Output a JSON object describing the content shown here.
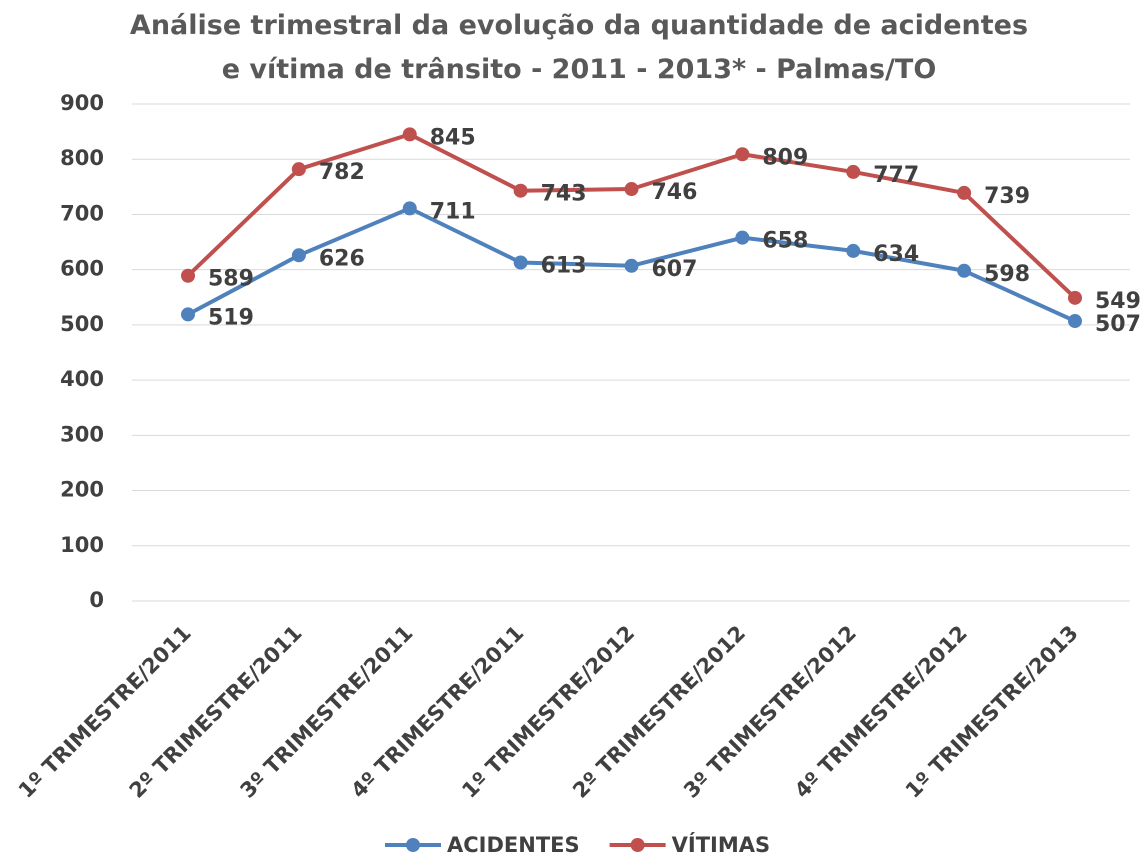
{
  "chart_data": {
    "type": "line",
    "title": "Análise trimestral da evolução da quantidade de acidentes e vítima de trânsito - 2011 - 2013* - Palmas/TO",
    "categories": [
      "1º TRIMESTRE/2011",
      "2º TRIMESTRE/2011",
      "3º TRIMESTRE/2011",
      "4º TRIMESTRE/2011",
      "1º TRIMESTRE/2012",
      "2º TRIMESTRE/2012",
      "3º TRIMESTRE/2012",
      "4º TRIMESTRE/2012",
      "1º TRIMESTRE/2013"
    ],
    "series": [
      {
        "name": "ACIDENTES",
        "color": "#4f81bd",
        "values": [
          519,
          626,
          711,
          613,
          607,
          658,
          634,
          598,
          507
        ]
      },
      {
        "name": "VÍTIMAS",
        "color": "#c0504d",
        "values": [
          589,
          782,
          845,
          743,
          746,
          809,
          777,
          739,
          549
        ]
      }
    ],
    "ylim": [
      0,
      900
    ],
    "yticks": [
      0,
      100,
      200,
      300,
      400,
      500,
      600,
      700,
      800,
      900
    ],
    "grid": true,
    "legend": "bottom"
  }
}
